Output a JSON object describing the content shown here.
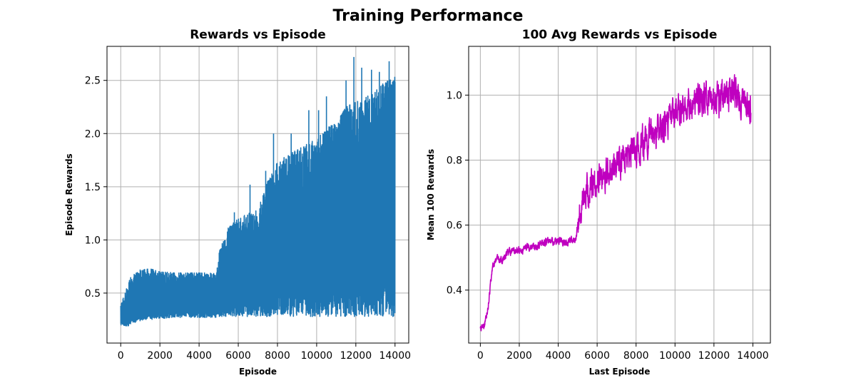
{
  "figure": {
    "title": "Training Performance"
  },
  "chart_data": [
    {
      "type": "line",
      "title": "Rewards vs Episode",
      "xlabel": "Episode",
      "ylabel": "Episode Rewards",
      "xlim": [
        -700,
        14700
      ],
      "ylim": [
        0.03,
        2.82
      ],
      "xticks": [
        0,
        2000,
        4000,
        6000,
        8000,
        10000,
        12000,
        14000
      ],
      "yticks": [
        0.5,
        1.0,
        1.5,
        2.0,
        2.5
      ],
      "ytick_labels": [
        "0.5",
        "1.0",
        "1.5",
        "2.0",
        "2.5"
      ],
      "grid": true,
      "color": "#1f77b4",
      "series": [
        {
          "x": [
            0,
            300,
            500,
            1000,
            1500,
            2000,
            3000,
            4000,
            4900,
            5000,
            5500,
            6000,
            6500,
            7000,
            7500,
            8000,
            8500,
            9000,
            9500,
            10000,
            10500,
            11000,
            11500,
            12000,
            12500,
            13000,
            13500,
            14000
          ],
          "upper": [
            0.38,
            0.55,
            0.65,
            0.72,
            0.73,
            0.7,
            0.69,
            0.69,
            0.69,
            0.88,
            1.12,
            1.2,
            1.25,
            1.28,
            1.55,
            1.75,
            1.8,
            1.85,
            1.9,
            1.95,
            2.05,
            2.1,
            2.25,
            2.3,
            2.35,
            2.4,
            2.5,
            2.55
          ],
          "lower": [
            0.2,
            0.17,
            0.21,
            0.24,
            0.25,
            0.26,
            0.27,
            0.27,
            0.27,
            0.28,
            0.28,
            0.28,
            0.28,
            0.28,
            0.28,
            0.28,
            0.28,
            0.28,
            0.28,
            0.28,
            0.28,
            0.28,
            0.28,
            0.28,
            0.28,
            0.28,
            0.28,
            0.28
          ],
          "spikes": [
            [
              5800,
              1.26
            ],
            [
              6600,
              1.52
            ],
            [
              7400,
              1.65
            ],
            [
              7800,
              2.0
            ],
            [
              8700,
              2.0
            ],
            [
              9600,
              2.22
            ],
            [
              10100,
              2.22
            ],
            [
              10500,
              2.35
            ],
            [
              11500,
              2.5
            ],
            [
              11900,
              2.72
            ],
            [
              12300,
              2.62
            ],
            [
              12800,
              2.6
            ],
            [
              13200,
              2.58
            ],
            [
              13700,
              2.68
            ]
          ]
        }
      ]
    },
    {
      "type": "line",
      "title": "100 Avg Rewards vs Episode",
      "xlabel": "Last Episode",
      "ylabel": "Mean 100 Rewards",
      "xlim": [
        -600,
        14900
      ],
      "ylim": [
        0.237,
        1.15
      ],
      "xticks": [
        0,
        2000,
        4000,
        6000,
        8000,
        10000,
        12000,
        14000
      ],
      "yticks": [
        0.4,
        0.6,
        0.8,
        1.0
      ],
      "ytick_labels": [
        "0.4",
        "0.6",
        "0.8",
        "1.0"
      ],
      "grid": true,
      "color": "#bf00bf",
      "series": [
        {
          "x": [
            0,
            200,
            400,
            600,
            800,
            1000,
            1500,
            2000,
            2500,
            3000,
            3500,
            4000,
            4500,
            4900,
            5100,
            5500,
            6000,
            6500,
            7000,
            7500,
            8000,
            8500,
            9000,
            9500,
            10000,
            10500,
            11000,
            11500,
            12000,
            12500,
            13000,
            13500,
            13900
          ],
          "y": [
            0.28,
            0.29,
            0.35,
            0.46,
            0.5,
            0.49,
            0.52,
            0.52,
            0.53,
            0.54,
            0.55,
            0.55,
            0.55,
            0.56,
            0.65,
            0.7,
            0.74,
            0.77,
            0.79,
            0.81,
            0.84,
            0.86,
            0.89,
            0.91,
            0.94,
            0.96,
            0.97,
            1.0,
            0.98,
            0.99,
            1.01,
            0.98,
            0.95
          ]
        }
      ]
    }
  ]
}
